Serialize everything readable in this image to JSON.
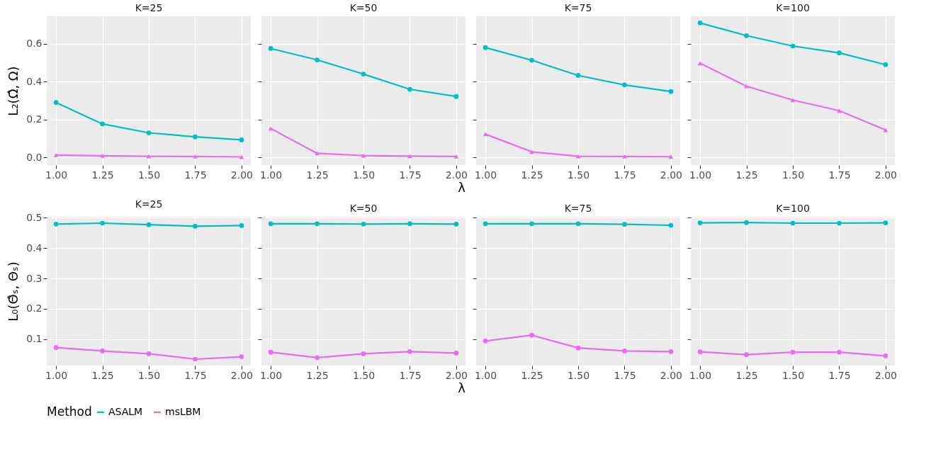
{
  "chart_data": [
    {
      "type": "line",
      "title": "K=25",
      "ylabel": "L₂(Ω̂, Ω)",
      "legend": "bottom",
      "legend_title": "Method",
      "grid": true,
      "x": [
        1,
        1.25,
        1.5,
        1.75,
        2
      ],
      "xlim": [
        0.95,
        2.05
      ],
      "xticks": [
        {
          "value": 1,
          "label": "1.00"
        },
        {
          "value": 1.25,
          "label": "1.25"
        },
        {
          "value": 1.5,
          "label": "1.50"
        },
        {
          "value": 1.75,
          "label": "1.75"
        },
        {
          "value": 2,
          "label": "2.00"
        }
      ],
      "ylim": [
        -0.04,
        0.745
      ],
      "yticks": [
        {
          "value": 0,
          "label": "0.0"
        },
        0.2,
        0.4,
        0.6
      ],
      "series": [
        {
          "name": "ASALM",
          "color": "#00bfc4",
          "marker": "circle",
          "values": [
            0.29,
            0.177,
            0.13,
            0.109,
            0.093
          ]
        },
        {
          "name": "msLBM",
          "color": "#e76bf3",
          "marker": "triangle",
          "values": [
            0.013,
            0.009,
            0.006,
            0.005,
            0.003
          ]
        }
      ]
    },
    {
      "type": "line",
      "title": "K=50",
      "xlabel": "λ",
      "tick_labels": "x",
      "grid": true,
      "x": [
        1,
        1.25,
        1.5,
        1.75,
        2
      ],
      "xlim": [
        0.95,
        2.05
      ],
      "xticks": [
        {
          "value": 1,
          "label": "1.00"
        },
        {
          "value": 1.25,
          "label": "1.25"
        },
        {
          "value": 1.5,
          "label": "1.50"
        },
        {
          "value": 1.75,
          "label": "1.75"
        },
        {
          "value": 2,
          "label": "2.00"
        }
      ],
      "ylim": [
        -0.04,
        0.745
      ],
      "yticks": [
        0,
        0.2,
        0.4,
        0.6
      ],
      "series": [
        {
          "name": "ASALM",
          "color": "#00bfc4",
          "marker": "circle",
          "values": [
            0.575,
            0.515,
            0.44,
            0.36,
            0.322
          ]
        },
        {
          "name": "msLBM",
          "color": "#e76bf3",
          "marker": "triangle",
          "values": [
            0.153,
            0.022,
            0.01,
            0.007,
            0.005
          ]
        }
      ]
    },
    {
      "type": "line",
      "title": "K=75",
      "tick_labels": "x",
      "grid": true,
      "x": [
        1,
        1.25,
        1.5,
        1.75,
        2
      ],
      "xlim": [
        0.95,
        2.05
      ],
      "xticks": [
        {
          "value": 1,
          "label": "1.00"
        },
        {
          "value": 1.25,
          "label": "1.25"
        },
        {
          "value": 1.5,
          "label": "1.50"
        },
        {
          "value": 1.75,
          "label": "1.75"
        },
        {
          "value": 2,
          "label": "2.00"
        }
      ],
      "ylim": [
        -0.04,
        0.745
      ],
      "yticks": [
        0,
        0.2,
        0.4,
        0.6
      ],
      "series": [
        {
          "name": "ASALM",
          "color": "#00bfc4",
          "marker": "circle",
          "values": [
            0.58,
            0.513,
            0.433,
            0.383,
            0.348
          ]
        },
        {
          "name": "msLBM",
          "color": "#e76bf3",
          "marker": "triangle",
          "values": [
            0.123,
            0.03,
            0.006,
            0.005,
            0.004
          ]
        }
      ]
    },
    {
      "type": "line",
      "title": "K=100",
      "tick_labels": "x",
      "grid": true,
      "x": [
        1,
        1.25,
        1.5,
        1.75,
        2
      ],
      "xlim": [
        0.95,
        2.05
      ],
      "xticks": [
        {
          "value": 1,
          "label": "1.00"
        },
        {
          "value": 1.25,
          "label": "1.25"
        },
        {
          "value": 1.5,
          "label": "1.50"
        },
        {
          "value": 1.75,
          "label": "1.75"
        },
        {
          "value": 2,
          "label": "2.00"
        }
      ],
      "ylim": [
        -0.04,
        0.745
      ],
      "yticks": [
        0,
        0.2,
        0.4,
        0.6
      ],
      "series": [
        {
          "name": "ASALM",
          "color": "#00bfc4",
          "marker": "circle",
          "values": [
            0.71,
            0.643,
            0.588,
            0.552,
            0.49
          ]
        },
        {
          "name": "msLBM",
          "color": "#e76bf3",
          "marker": "triangle",
          "values": [
            0.497,
            0.376,
            0.303,
            0.247,
            0.145
          ]
        }
      ]
    },
    {
      "type": "line",
      "title": "K=25",
      "ylabel": "L₀(Θ̂ₛ, Θₛ)",
      "grid": true,
      "x": [
        1,
        1.25,
        1.5,
        1.75,
        2
      ],
      "xlim": [
        0.95,
        2.05
      ],
      "xticks": [
        {
          "value": 1,
          "label": "1.00"
        },
        {
          "value": 1.25,
          "label": "1.25"
        },
        {
          "value": 1.5,
          "label": "1.50"
        },
        {
          "value": 1.75,
          "label": "1.75"
        },
        {
          "value": 2,
          "label": "2.00"
        }
      ],
      "ylim": [
        0.013,
        0.503
      ],
      "yticks": [
        0.1,
        0.2,
        0.3,
        0.4,
        0.5
      ],
      "series": [
        {
          "name": "ASALM",
          "color": "#00bfc4",
          "marker": "circle",
          "values": [
            0.479,
            0.482,
            0.477,
            0.472,
            0.474
          ]
        },
        {
          "name": "msLBM",
          "color": "#e76bf3",
          "marker": "circle",
          "values": [
            0.072,
            0.061,
            0.052,
            0.034,
            0.042
          ]
        }
      ]
    },
    {
      "type": "line",
      "title": "K=50",
      "xlabel": "λ",
      "tick_labels": "x",
      "grid": true,
      "x": [
        1,
        1.25,
        1.5,
        1.75,
        2
      ],
      "xlim": [
        0.95,
        2.05
      ],
      "xticks": [
        {
          "value": 1,
          "label": "1.00"
        },
        {
          "value": 1.25,
          "label": "1.25"
        },
        {
          "value": 1.5,
          "label": "1.50"
        },
        {
          "value": 1.75,
          "label": "1.75"
        },
        {
          "value": 2,
          "label": "2.00"
        }
      ],
      "ylim": [
        0.013,
        0.503
      ],
      "yticks": [
        0.1,
        0.2,
        0.3,
        0.4,
        0.5
      ],
      "series": [
        {
          "name": "ASALM",
          "color": "#00bfc4",
          "marker": "circle",
          "values": [
            0.48,
            0.48,
            0.479,
            0.48,
            0.479
          ]
        },
        {
          "name": "msLBM",
          "color": "#e76bf3",
          "marker": "circle",
          "values": [
            0.057,
            0.039,
            0.052,
            0.059,
            0.054
          ]
        }
      ]
    },
    {
      "type": "line",
      "title": "K=75",
      "tick_labels": "x",
      "grid": true,
      "x": [
        1,
        1.25,
        1.5,
        1.75,
        2
      ],
      "xlim": [
        0.95,
        2.05
      ],
      "xticks": [
        {
          "value": 1,
          "label": "1.00"
        },
        {
          "value": 1.25,
          "label": "1.25"
        },
        {
          "value": 1.5,
          "label": "1.50"
        },
        {
          "value": 1.75,
          "label": "1.75"
        },
        {
          "value": 2,
          "label": "2.00"
        }
      ],
      "ylim": [
        0.013,
        0.503
      ],
      "yticks": [
        0.1,
        0.2,
        0.3,
        0.4,
        0.5
      ],
      "series": [
        {
          "name": "ASALM",
          "color": "#00bfc4",
          "marker": "circle",
          "values": [
            0.48,
            0.48,
            0.48,
            0.478,
            0.475
          ]
        },
        {
          "name": "msLBM",
          "color": "#e76bf3",
          "marker": "circle",
          "values": [
            0.094,
            0.113,
            0.071,
            0.061,
            0.059
          ]
        }
      ]
    },
    {
      "type": "line",
      "title": "K=100",
      "tick_labels": "x",
      "grid": true,
      "x": [
        1,
        1.25,
        1.5,
        1.75,
        2
      ],
      "xlim": [
        0.95,
        2.05
      ],
      "xticks": [
        {
          "value": 1,
          "label": "1.00"
        },
        {
          "value": 1.25,
          "label": "1.25"
        },
        {
          "value": 1.5,
          "label": "1.50"
        },
        {
          "value": 1.75,
          "label": "1.75"
        },
        {
          "value": 2,
          "label": "2.00"
        }
      ],
      "ylim": [
        0.013,
        0.503
      ],
      "yticks": [
        0.1,
        0.2,
        0.3,
        0.4,
        0.5
      ],
      "series": [
        {
          "name": "ASALM",
          "color": "#00bfc4",
          "marker": "circle",
          "values": [
            0.483,
            0.484,
            0.482,
            0.482,
            0.483
          ]
        },
        {
          "name": "msLBM",
          "color": "#e76bf3",
          "marker": "circle",
          "values": [
            0.058,
            0.049,
            0.057,
            0.057,
            0.045
          ]
        }
      ]
    }
  ]
}
